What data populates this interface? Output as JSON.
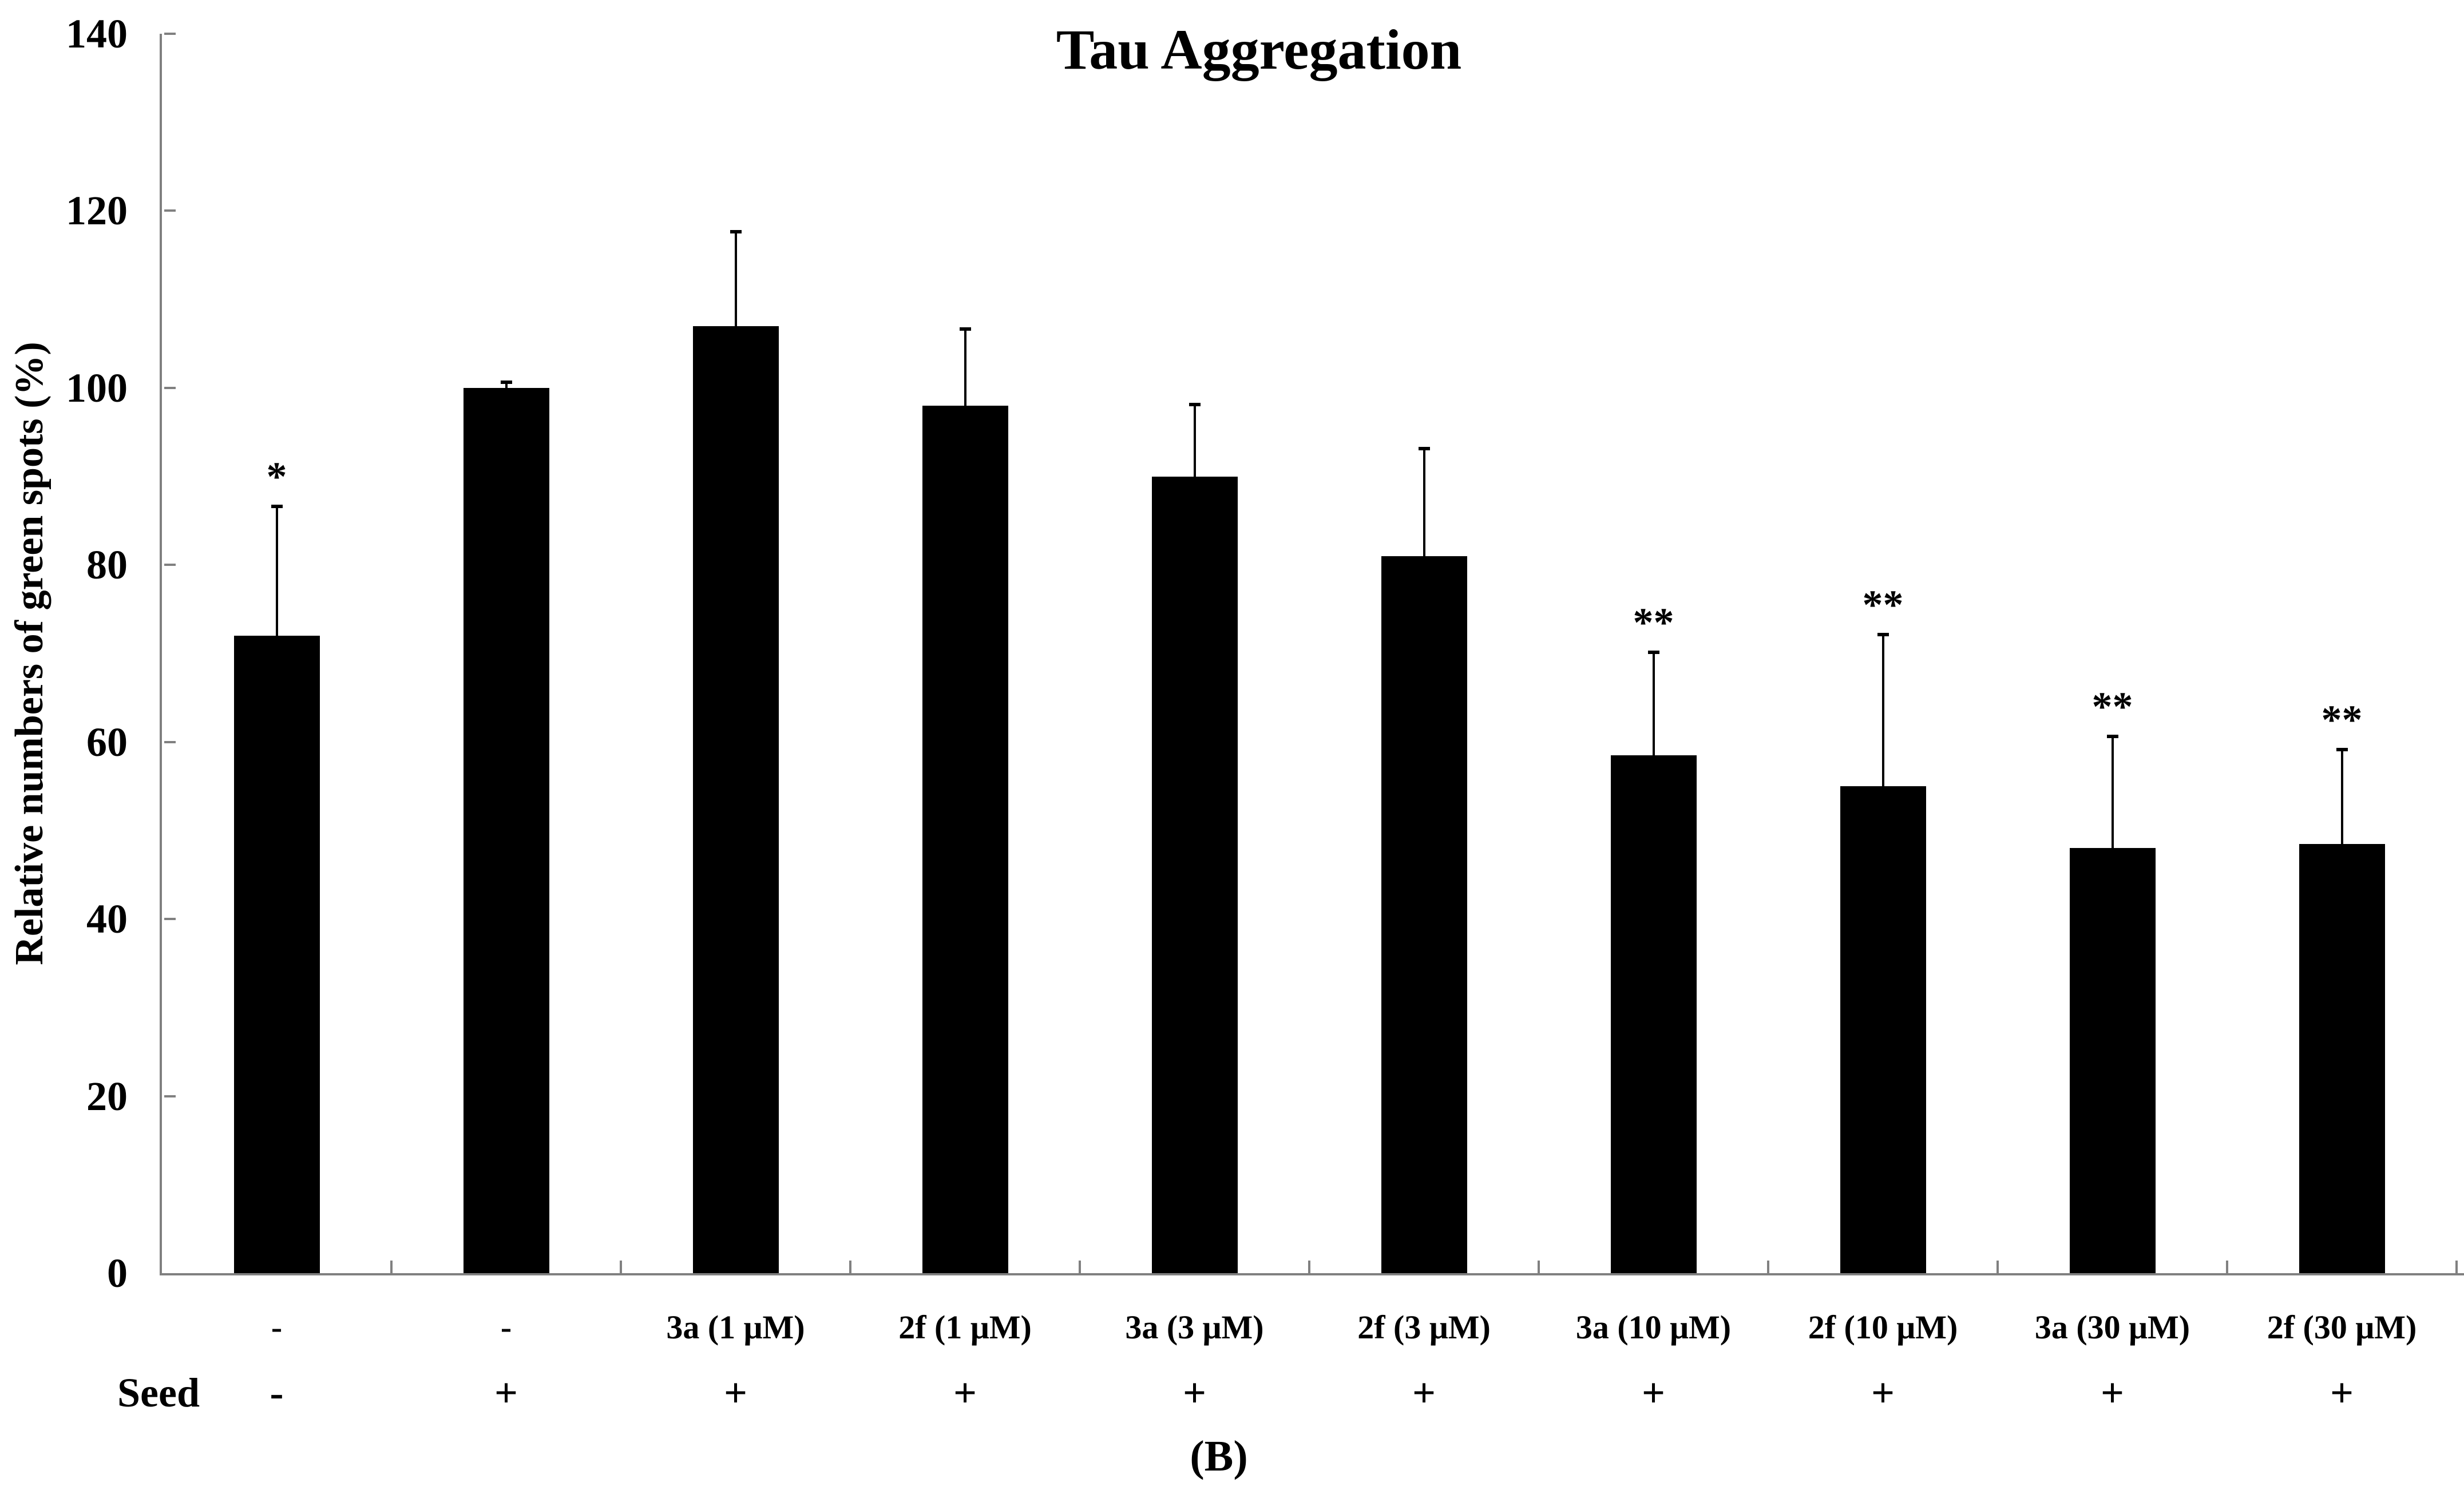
{
  "chart": {
    "title": "Tau Aggregation",
    "ylabel": "Relative numbers of green spots (%)",
    "seed_row_label": "Seed",
    "panel_label": "(B)"
  },
  "chart_data": {
    "type": "bar",
    "title": "Tau Aggregation",
    "xlabel": "",
    "ylabel": "Relative numbers of green spots (%)",
    "ylim": [
      0,
      140
    ],
    "ytick_step": 20,
    "grid": false,
    "legend": false,
    "bar_color": "#000000",
    "axis_color": "#808080",
    "categories": [
      "-",
      "-",
      "3a (1 μM)",
      "2f (1 μM)",
      "3a (3 μM)",
      "2f (3 μM)",
      "3a (10 μM)",
      "2f (10 μM)",
      "3a (30 μM)",
      "2f (30 μM)"
    ],
    "seed_row_label": "Seed",
    "seed_row": [
      "-",
      "+",
      "+",
      "+",
      "+",
      "+",
      "+",
      "+",
      "+",
      "+"
    ],
    "values": [
      72,
      100,
      107,
      98,
      90,
      81,
      58.5,
      55,
      48,
      48.5
    ],
    "errors_upper": [
      14.5,
      0.5,
      10.5,
      8.5,
      8,
      12,
      11.5,
      17,
      12.5,
      10.5
    ],
    "significance": [
      "*",
      "",
      "",
      "",
      "",
      "",
      "**",
      "**",
      "**",
      "**"
    ],
    "panel_label": "(B)"
  }
}
